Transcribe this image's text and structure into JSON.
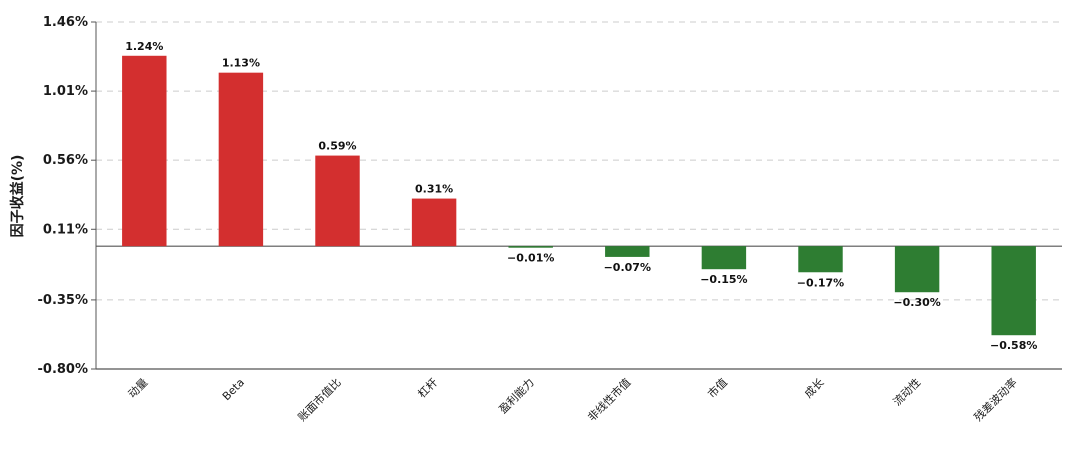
{
  "chart_data": {
    "type": "bar",
    "title": "",
    "xlabel": "",
    "ylabel": "因子收益(%)",
    "ylim": [
      -0.8,
      1.46
    ],
    "yticks": [
      "1.46%",
      "1.01%",
      "0.56%",
      "0.11%",
      "-0.35%",
      "-0.80%"
    ],
    "ytick_values": [
      1.46,
      1.01,
      0.56,
      0.11,
      -0.35,
      -0.8
    ],
    "categories": [
      "动量",
      "Beta",
      "账面市值比",
      "杠杆",
      "盈利能力",
      "非线性市值",
      "市值",
      "成长",
      "流动性",
      "残差波动率"
    ],
    "values": [
      1.24,
      1.13,
      0.59,
      0.31,
      -0.01,
      -0.07,
      -0.15,
      -0.17,
      -0.3,
      -0.58
    ],
    "value_labels": [
      "1.24%",
      "1.13%",
      "0.59%",
      "0.31%",
      "−0.01%",
      "−0.07%",
      "−0.15%",
      "−0.17%",
      "−0.30%",
      "−0.58%"
    ],
    "grid": "horizontal-dashed",
    "colors": {
      "positive": "#d32f2f",
      "negative": "#2e7d32",
      "grid": "#cccccc",
      "axis": "#555555"
    }
  }
}
